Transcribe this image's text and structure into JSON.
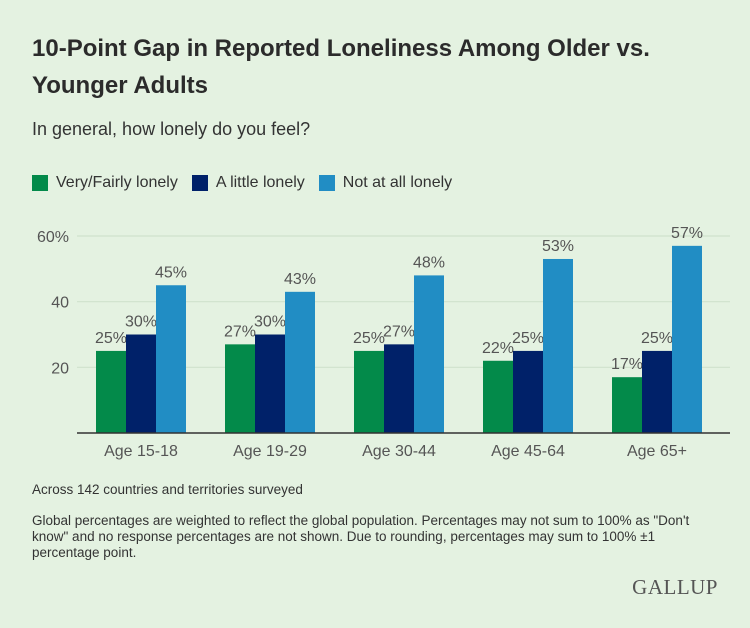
{
  "title": "10-Point Gap in Reported Loneliness Among Older vs. Younger Adults",
  "subtitle": "In general, how lonely do you feel?",
  "note1": "Across 142 countries and territories surveyed",
  "note2": "Global percentages are weighted to reflect the global population. Percentages may not sum to 100% as \"Don't know\" and no response percentages are not shown. Due to rounding, percentages may sum to 100% ±1 percentage point.",
  "logo": "GALLUP",
  "chart_data": {
    "type": "bar",
    "categories": [
      "Age 15-18",
      "Age 19-29",
      "Age 30-44",
      "Age 45-64",
      "Age 65+"
    ],
    "series": [
      {
        "name": "Very/Fairly lonely",
        "color": "#038a4a",
        "values": [
          25,
          27,
          25,
          22,
          17
        ]
      },
      {
        "name": "A little lonely",
        "color": "#002169",
        "values": [
          30,
          30,
          27,
          25,
          25
        ]
      },
      {
        "name": "Not at all lonely",
        "color": "#218dc4",
        "values": [
          45,
          43,
          48,
          53,
          57
        ]
      }
    ],
    "yticks": [
      {
        "value": 20,
        "label": "20"
      },
      {
        "value": 40,
        "label": "40"
      },
      {
        "value": 60,
        "label": "60%"
      }
    ],
    "ylim": [
      0,
      60
    ],
    "grid": true,
    "legend": "top-left",
    "data_label_suffix": "%"
  }
}
